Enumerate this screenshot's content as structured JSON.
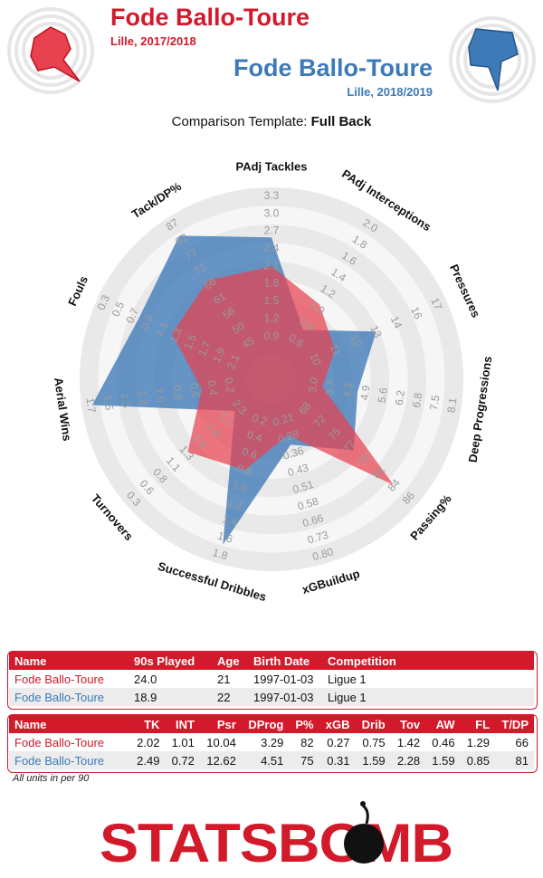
{
  "header": {
    "player1": {
      "name": "Fode Ballo-Toure",
      "season": "Lille, 2017/2018",
      "color": "#d21a2b"
    },
    "player2": {
      "name": "Fode Ballo-Toure",
      "season": "Lille, 2018/2019",
      "color": "#3d7ab7"
    },
    "template_prefix": "Comparison Template: ",
    "template_name": "Full Back"
  },
  "chart_data": {
    "type": "radar",
    "axes": [
      {
        "label": "PAdj Tackles",
        "ticks": [
          "0.9",
          "1.2",
          "1.5",
          "1.8",
          "2.1",
          "2.4",
          "2.7",
          "3.0",
          "3.3"
        ],
        "min": 0.6,
        "max": 3.3,
        "p1": 2.02,
        "p2": 2.49
      },
      {
        "label": "PAdj Interceptions",
        "ticks": [
          "0.6",
          "0.8",
          "1.0",
          "1.2",
          "1.4",
          "1.6",
          "1.8",
          "2.0"
        ],
        "min": 0.4,
        "max": 2.0,
        "p1": 1.01,
        "p2": 0.72
      },
      {
        "label": "Pressures",
        "ticks": [
          "10",
          "11",
          "12",
          "13",
          "14",
          "16",
          "17"
        ],
        "min": 7.5,
        "max": 17,
        "p1": 10.04,
        "p2": 12.62
      },
      {
        "label": "Deep Progressions",
        "ticks": [
          "3.0",
          "3.7",
          "4.3",
          "4.9",
          "5.6",
          "6.2",
          "6.8",
          "7.5",
          "8.1"
        ],
        "min": 2.4,
        "max": 8.1,
        "p1": 3.29,
        "p2": 4.51
      },
      {
        "label": "Passing%",
        "ticks": [
          "68",
          "72",
          "75",
          "77",
          "79",
          "81",
          "84",
          "86"
        ],
        "min": 64,
        "max": 86,
        "p1": 82,
        "p2": 75
      },
      {
        "label": "xGBuildup",
        "ticks": [
          "0.21",
          "0.28",
          "0.36",
          "0.43",
          "0.51",
          "0.58",
          "0.66",
          "0.73",
          "0.80"
        ],
        "min": 0.14,
        "max": 0.8,
        "p1": 0.27,
        "p2": 0.31
      },
      {
        "label": "Successful Dribbles",
        "ticks": [
          "0.2",
          "0.4",
          "0.6",
          "0.8",
          "1.0",
          "1.2",
          "1.4",
          "1.6",
          "1.8"
        ],
        "min": 0.0,
        "max": 1.8,
        "p1": 0.75,
        "p2": 1.59
      },
      {
        "label": "Turnovers",
        "ticks": [
          "2.3",
          "2.1",
          "1.8",
          "1.6",
          "1.3",
          "1.1",
          "0.8",
          "0.6",
          "0.3"
        ],
        "min": 2.6,
        "max": 0.3,
        "p1": 1.42,
        "p2": 2.28
      },
      {
        "label": "Aerial Wins",
        "ticks": [
          "0.2",
          "0.4",
          "0.6",
          "0.8",
          "1.0",
          "1.2",
          "1.3",
          "1.5",
          "1.7"
        ],
        "min": 0.0,
        "max": 1.7,
        "p1": 0.46,
        "p2": 1.59
      },
      {
        "label": "Fouls",
        "ticks": [
          "2.1",
          "1.9",
          "1.7",
          "1.5",
          "1.3",
          "1.1",
          "0.9",
          "0.7",
          "0.5",
          "0.3"
        ],
        "min": 2.3,
        "max": 0.3,
        "p1": 1.29,
        "p2": 0.85
      },
      {
        "label": "Tack/DP%",
        "ticks": [
          "45",
          "50",
          "56",
          "61",
          "66",
          "71",
          "77",
          "82",
          "87"
        ],
        "min": 40,
        "max": 87,
        "p1": 66,
        "p2": 81
      }
    ],
    "series": [
      {
        "name": "Fode Ballo-Toure",
        "color": "#e8414f"
      },
      {
        "name": "Fode Ballo-Toure",
        "color": "#3d7ab7"
      }
    ]
  },
  "table1": {
    "headers": [
      "Name",
      "90s Played",
      "Age",
      "Birth Date",
      "Competition"
    ],
    "rows": [
      [
        "Fode Ballo-Toure",
        "24.0",
        "21",
        "1997-01-03",
        "Ligue 1"
      ],
      [
        "Fode Ballo-Toure",
        "18.9",
        "22",
        "1997-01-03",
        "Ligue 1"
      ]
    ]
  },
  "table2": {
    "headers": [
      "Name",
      "TK",
      "INT",
      "Psr",
      "DProg",
      "P%",
      "xGB",
      "Drib",
      "Tov",
      "AW",
      "FL",
      "T/DP"
    ],
    "rows": [
      [
        "Fode Ballo-Toure",
        "2.02",
        "1.01",
        "10.04",
        "3.29",
        "82",
        "0.27",
        "0.75",
        "1.42",
        "0.46",
        "1.29",
        "66"
      ],
      [
        "Fode Ballo-Toure",
        "2.49",
        "0.72",
        "12.62",
        "4.51",
        "75",
        "0.31",
        "1.59",
        "2.28",
        "1.59",
        "0.85",
        "81"
      ]
    ]
  },
  "footer": {
    "units_note": "All units in per 90",
    "logo_text": "STATSBOMB"
  }
}
